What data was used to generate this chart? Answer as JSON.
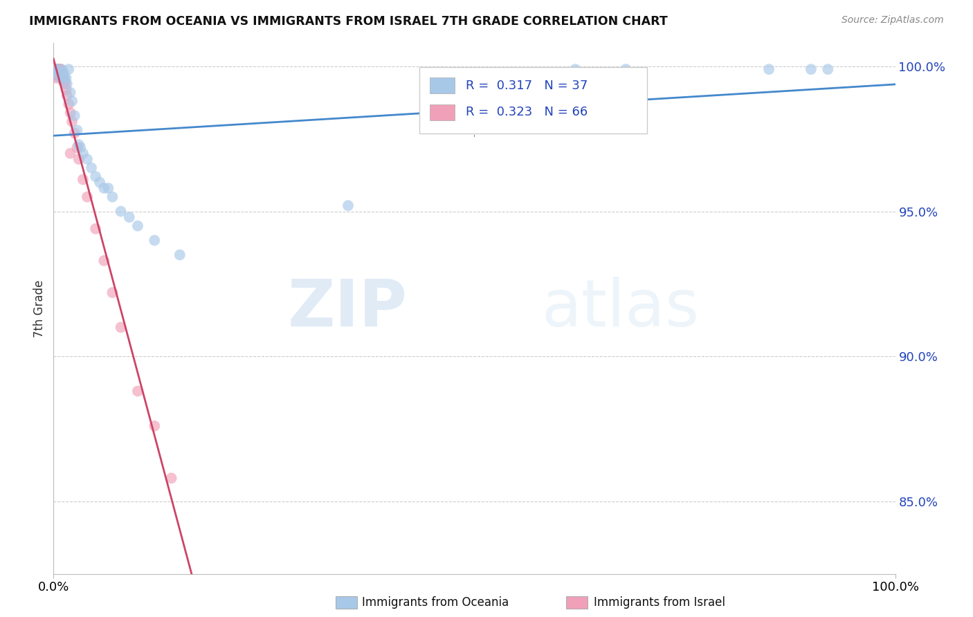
{
  "title": "IMMIGRANTS FROM OCEANIA VS IMMIGRANTS FROM ISRAEL 7TH GRADE CORRELATION CHART",
  "source": "Source: ZipAtlas.com",
  "ylabel": "7th Grade",
  "y_ticks": [
    0.85,
    0.9,
    0.95,
    1.0
  ],
  "y_tick_labels": [
    "85.0%",
    "90.0%",
    "95.0%",
    "100.0%"
  ],
  "x_range": [
    0.0,
    1.0
  ],
  "y_range": [
    0.825,
    1.008
  ],
  "legend_r_blue": "0.317",
  "legend_n_blue": "37",
  "legend_r_pink": "0.323",
  "legend_n_pink": "66",
  "color_blue": "#a8c8e8",
  "color_pink": "#f0a0b8",
  "line_color_blue": "#4488cc",
  "line_color_pink": "#cc4466",
  "legend_text_color": "#2244bb",
  "watermark_zip": "ZIP",
  "watermark_atlas": "atlas",
  "blue_scatter_x": [
    0.002,
    0.003,
    0.005,
    0.006,
    0.008,
    0.009,
    0.01,
    0.012,
    0.013,
    0.015,
    0.016,
    0.018,
    0.02,
    0.022,
    0.025,
    0.028,
    0.03,
    0.032,
    0.035,
    0.04,
    0.045,
    0.05,
    0.055,
    0.06,
    0.065,
    0.07,
    0.08,
    0.09,
    0.1,
    0.12,
    0.15,
    0.35,
    0.62,
    0.68,
    0.85,
    0.9,
    0.92
  ],
  "blue_scatter_y": [
    0.999,
    0.999,
    0.998,
    0.997,
    0.996,
    0.999,
    0.997,
    0.998,
    0.996,
    0.996,
    0.994,
    0.999,
    0.991,
    0.988,
    0.983,
    0.978,
    0.973,
    0.972,
    0.97,
    0.968,
    0.965,
    0.962,
    0.96,
    0.958,
    0.958,
    0.955,
    0.95,
    0.948,
    0.945,
    0.94,
    0.935,
    0.952,
    0.999,
    0.999,
    0.999,
    0.999,
    0.999
  ],
  "pink_scatter_x": [
    0.0,
    0.0,
    0.0,
    0.0,
    0.0,
    0.0,
    0.0,
    0.0,
    0.0,
    0.0,
    0.001,
    0.001,
    0.001,
    0.001,
    0.002,
    0.002,
    0.002,
    0.003,
    0.003,
    0.003,
    0.003,
    0.003,
    0.003,
    0.004,
    0.004,
    0.005,
    0.005,
    0.005,
    0.006,
    0.006,
    0.006,
    0.006,
    0.007,
    0.007,
    0.007,
    0.008,
    0.008,
    0.008,
    0.009,
    0.009,
    0.01,
    0.01,
    0.01,
    0.011,
    0.011,
    0.012,
    0.013,
    0.014,
    0.015,
    0.016,
    0.018,
    0.02,
    0.022,
    0.025,
    0.028,
    0.03,
    0.035,
    0.04,
    0.05,
    0.06,
    0.07,
    0.08,
    0.1,
    0.12,
    0.02,
    0.14
  ],
  "pink_scatter_y": [
    0.999,
    0.999,
    0.999,
    0.999,
    0.999,
    0.998,
    0.998,
    0.998,
    0.997,
    0.997,
    0.999,
    0.999,
    0.998,
    0.997,
    0.999,
    0.998,
    0.997,
    0.999,
    0.999,
    0.998,
    0.998,
    0.997,
    0.996,
    0.999,
    0.998,
    0.999,
    0.998,
    0.997,
    0.999,
    0.999,
    0.998,
    0.997,
    0.999,
    0.998,
    0.997,
    0.999,
    0.998,
    0.997,
    0.999,
    0.997,
    0.998,
    0.997,
    0.996,
    0.997,
    0.995,
    0.996,
    0.995,
    0.994,
    0.992,
    0.99,
    0.987,
    0.984,
    0.981,
    0.977,
    0.972,
    0.968,
    0.961,
    0.955,
    0.944,
    0.933,
    0.922,
    0.91,
    0.888,
    0.876,
    0.97,
    0.858
  ]
}
